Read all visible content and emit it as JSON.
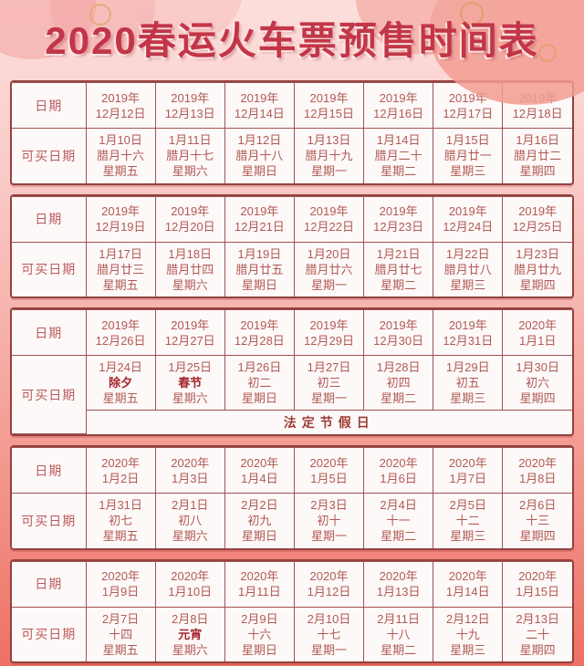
{
  "title": "2020春运火车票预售时间表",
  "labels": {
    "date_row": "日期",
    "buy_row": "可买日期"
  },
  "colors": {
    "title_text": "#c23648",
    "table_border": "#93413f",
    "cell_text": "#b15a55",
    "highlight_text": "#a3242d",
    "background_top": "#fcdfdd",
    "background_bottom": "#ee7065"
  },
  "tables": [
    {
      "dates": [
        [
          "2019年",
          "12月12日"
        ],
        [
          "2019年",
          "12月13日"
        ],
        [
          "2019年",
          "12月14日"
        ],
        [
          "2019年",
          "12月15日"
        ],
        [
          "2019年",
          "12月16日"
        ],
        [
          "2019年",
          "12月17日"
        ],
        [
          "2019年",
          "12月18日"
        ]
      ],
      "buy": [
        {
          "date": "1月10日",
          "day": "腊月十六",
          "week": "星期五"
        },
        {
          "date": "1月11日",
          "day": "腊月十七",
          "week": "星期六"
        },
        {
          "date": "1月12日",
          "day": "腊月十八",
          "week": "星期日"
        },
        {
          "date": "1月13日",
          "day": "腊月十九",
          "week": "星期一"
        },
        {
          "date": "1月14日",
          "day": "腊月二十",
          "week": "星期二"
        },
        {
          "date": "1月15日",
          "day": "腊月廿一",
          "week": "星期三"
        },
        {
          "date": "1月16日",
          "day": "腊月廿二",
          "week": "星期四"
        }
      ]
    },
    {
      "dates": [
        [
          "2019年",
          "12月19日"
        ],
        [
          "2019年",
          "12月20日"
        ],
        [
          "2019年",
          "12月21日"
        ],
        [
          "2019年",
          "12月22日"
        ],
        [
          "2019年",
          "12月23日"
        ],
        [
          "2019年",
          "12月24日"
        ],
        [
          "2019年",
          "12月25日"
        ]
      ],
      "buy": [
        {
          "date": "1月17日",
          "day": "腊月廿三",
          "week": "星期五"
        },
        {
          "date": "1月18日",
          "day": "腊月廿四",
          "week": "星期六"
        },
        {
          "date": "1月19日",
          "day": "腊月廿五",
          "week": "星期日"
        },
        {
          "date": "1月20日",
          "day": "腊月廿六",
          "week": "星期一"
        },
        {
          "date": "1月21日",
          "day": "腊月廿七",
          "week": "星期二"
        },
        {
          "date": "1月22日",
          "day": "腊月廿八",
          "week": "星期三"
        },
        {
          "date": "1月23日",
          "day": "腊月廿九",
          "week": "星期四"
        }
      ]
    },
    {
      "dates": [
        [
          "2019年",
          "12月26日"
        ],
        [
          "2019年",
          "12月27日"
        ],
        [
          "2019年",
          "12月28日"
        ],
        [
          "2019年",
          "12月29日"
        ],
        [
          "2019年",
          "12月30日"
        ],
        [
          "2019年",
          "12月31日"
        ],
        [
          "2020年",
          "1月1日"
        ]
      ],
      "buy": [
        {
          "date": "1月24日",
          "day": "除夕",
          "week": "星期五",
          "highlight": true
        },
        {
          "date": "1月25日",
          "day": "春节",
          "week": "星期六",
          "highlight": true
        },
        {
          "date": "1月26日",
          "day": "初二",
          "week": "星期日"
        },
        {
          "date": "1月27日",
          "day": "初三",
          "week": "星期一"
        },
        {
          "date": "1月28日",
          "day": "初四",
          "week": "星期二"
        },
        {
          "date": "1月29日",
          "day": "初五",
          "week": "星期三"
        },
        {
          "date": "1月30日",
          "day": "初六",
          "week": "星期四"
        }
      ],
      "holiday_note": "法定节假日"
    },
    {
      "dates": [
        [
          "2020年",
          "1月2日"
        ],
        [
          "2020年",
          "1月3日"
        ],
        [
          "2020年",
          "1月4日"
        ],
        [
          "2020年",
          "1月5日"
        ],
        [
          "2020年",
          "1月6日"
        ],
        [
          "2020年",
          "1月7日"
        ],
        [
          "2020年",
          "1月8日"
        ]
      ],
      "buy": [
        {
          "date": "1月31日",
          "day": "初七",
          "week": "星期五"
        },
        {
          "date": "2月1日",
          "day": "初八",
          "week": "星期六"
        },
        {
          "date": "2月2日",
          "day": "初九",
          "week": "星期日"
        },
        {
          "date": "2月3日",
          "day": "初十",
          "week": "星期一"
        },
        {
          "date": "2月4日",
          "day": "十一",
          "week": "星期二"
        },
        {
          "date": "2月5日",
          "day": "十二",
          "week": "星期三"
        },
        {
          "date": "2月6日",
          "day": "十三",
          "week": "星期四"
        }
      ]
    },
    {
      "dates": [
        [
          "2020年",
          "1月9日"
        ],
        [
          "2020年",
          "1月10日"
        ],
        [
          "2020年",
          "1月11日"
        ],
        [
          "2020年",
          "1月12日"
        ],
        [
          "2020年",
          "1月13日"
        ],
        [
          "2020年",
          "1月14日"
        ],
        [
          "2020年",
          "1月15日"
        ]
      ],
      "buy": [
        {
          "date": "2月7日",
          "day": "十四",
          "week": "星期五"
        },
        {
          "date": "2月8日",
          "day": "元宵",
          "week": "星期六",
          "highlight": true
        },
        {
          "date": "2月9日",
          "day": "十六",
          "week": "星期日"
        },
        {
          "date": "2月10日",
          "day": "十七",
          "week": "星期一"
        },
        {
          "date": "2月11日",
          "day": "十八",
          "week": "星期二"
        },
        {
          "date": "2月12日",
          "day": "十九",
          "week": "星期三"
        },
        {
          "date": "2月13日",
          "day": "二十",
          "week": "星期四"
        }
      ]
    }
  ]
}
